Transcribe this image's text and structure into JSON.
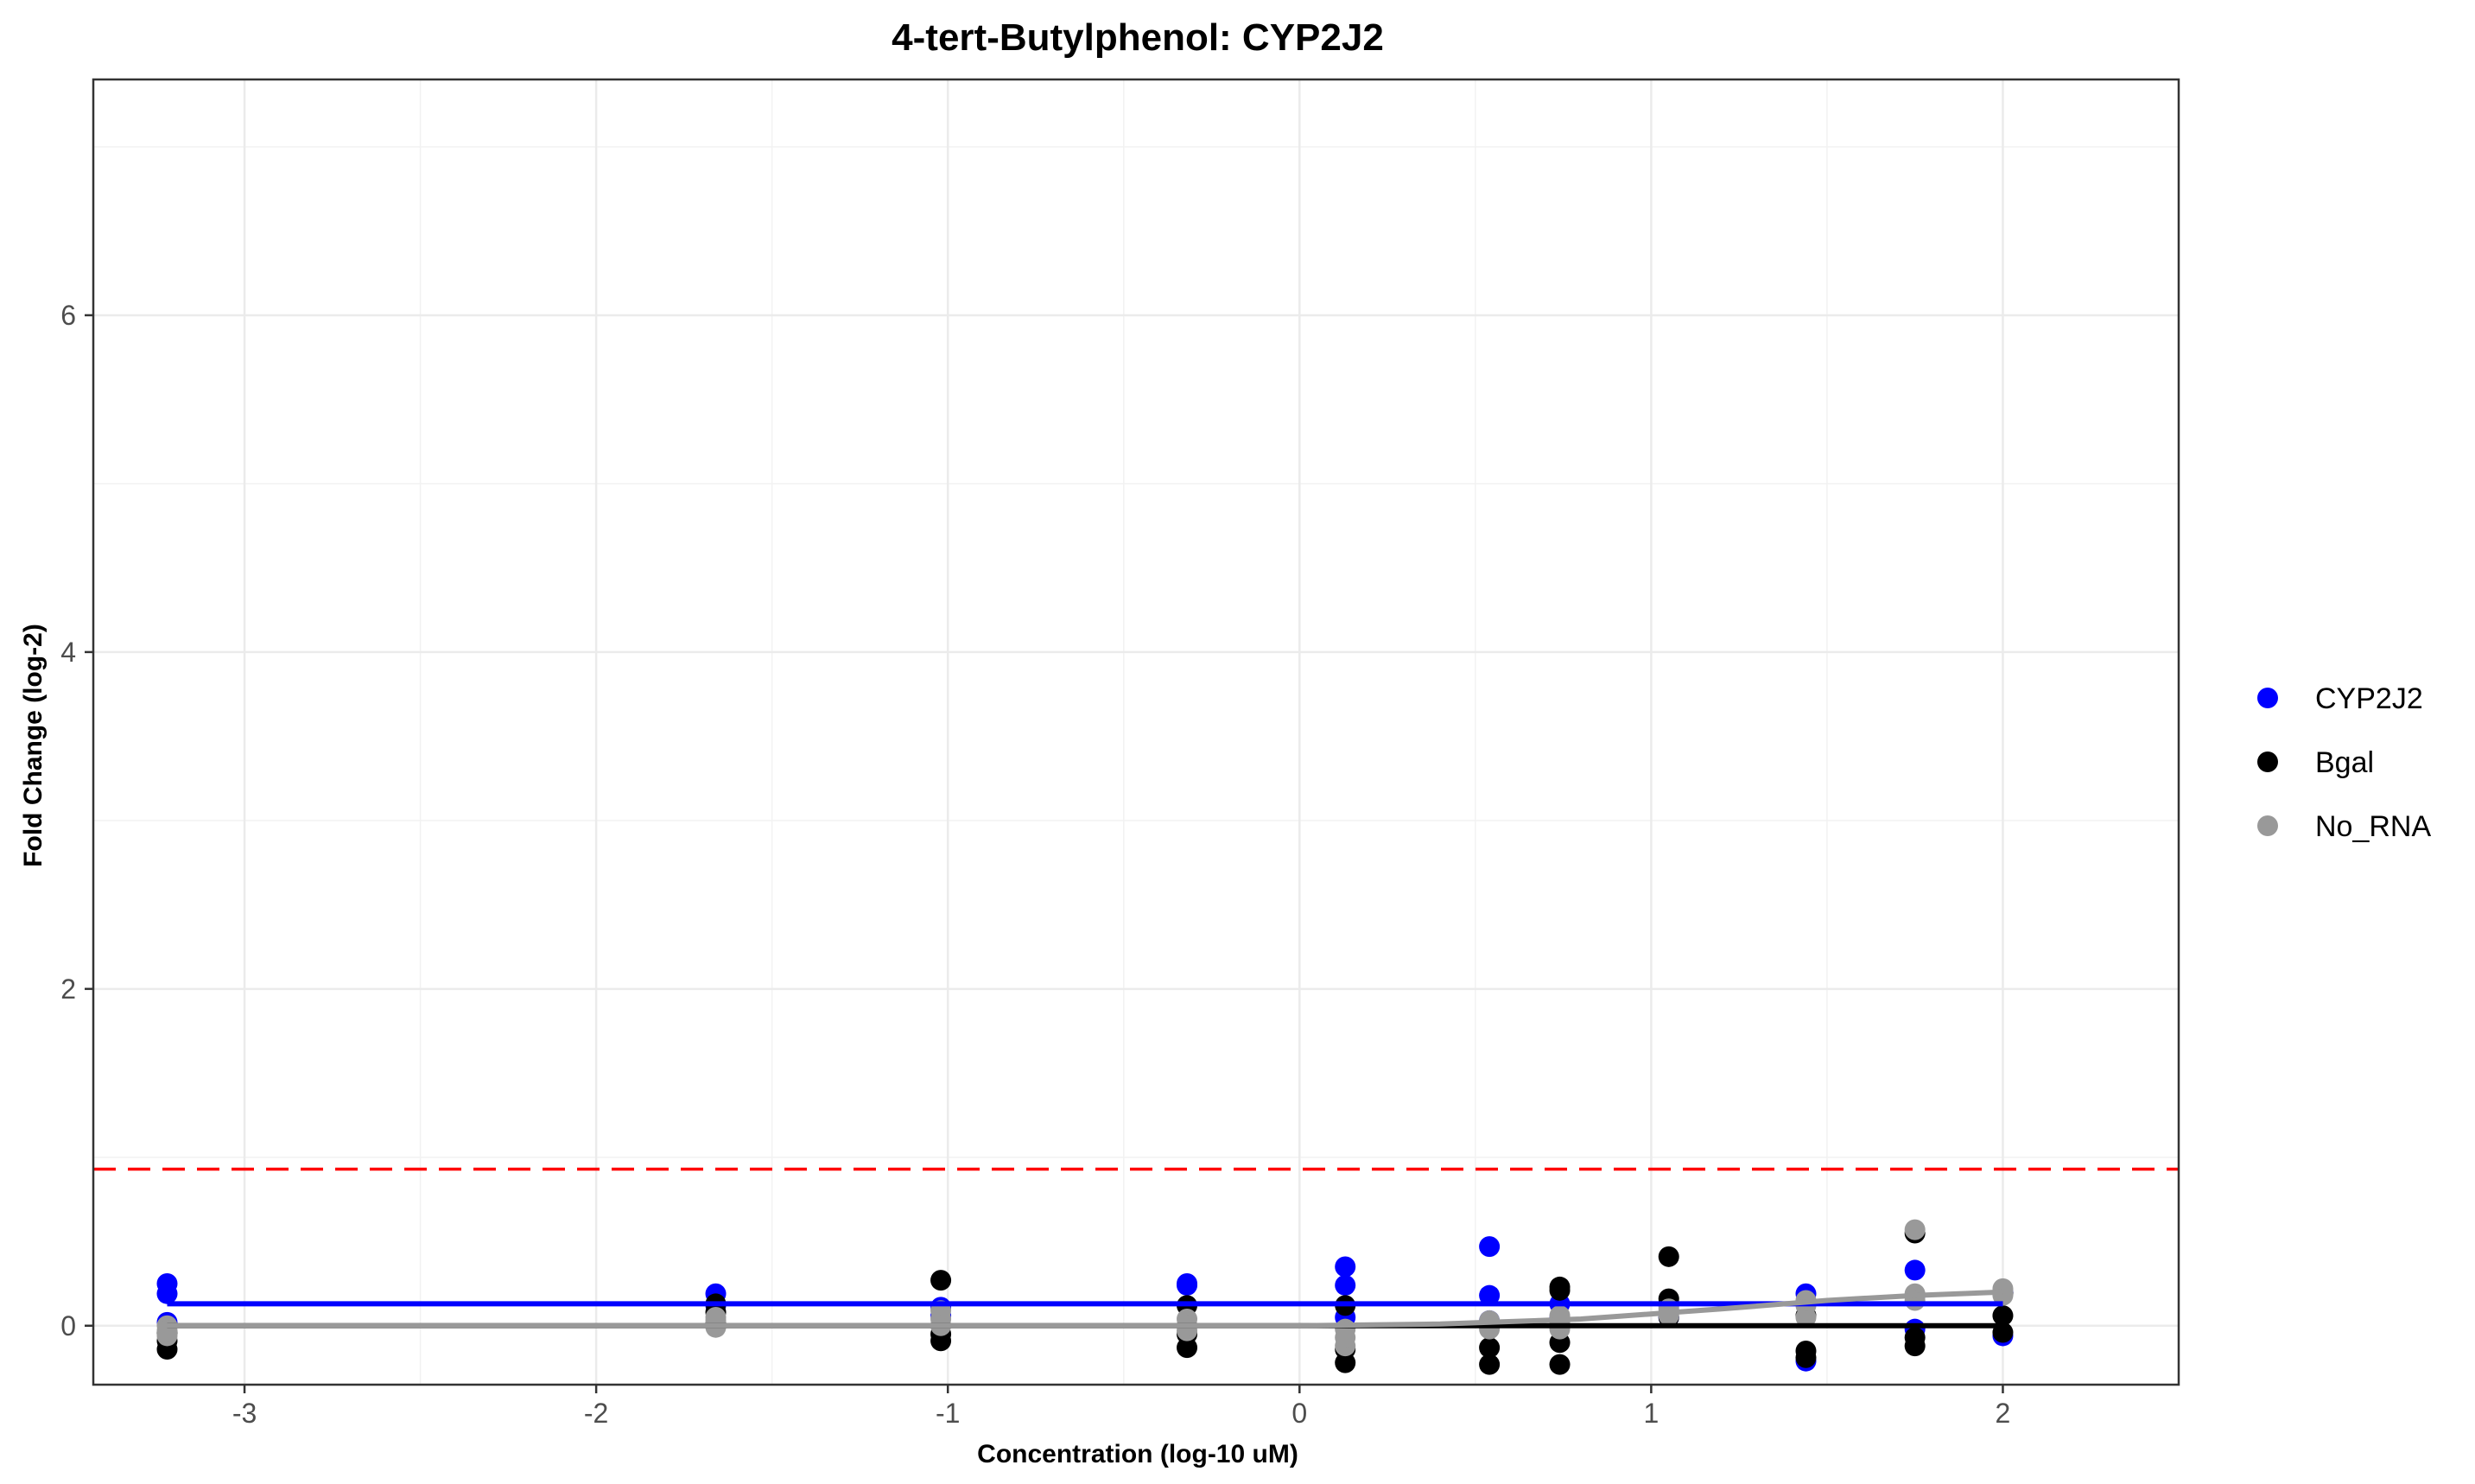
{
  "chart_data": {
    "type": "scatter",
    "title": "4-tert-Butylphenol: CYP2J2",
    "xlabel": "Concentration (log-10 uM)",
    "ylabel": "Fold Change (log-2)",
    "xlim": [
      -3.43,
      2.5
    ],
    "ylim": [
      -0.35,
      7.4
    ],
    "x_ticks": [
      -3,
      -2,
      -1,
      0,
      1,
      2
    ],
    "y_ticks": [
      0,
      2,
      4,
      6
    ],
    "grid": true,
    "legend_position": "right",
    "threshold": {
      "y": 0.93,
      "color": "#ff0000",
      "style": "dashed"
    },
    "series": [
      {
        "name": "CYP2J2",
        "color": "#0000ff",
        "points": [
          [
            -3.22,
            0.25
          ],
          [
            -3.22,
            0.19
          ],
          [
            -3.22,
            0.02
          ],
          [
            -1.66,
            0.19
          ],
          [
            -1.66,
            0.12
          ],
          [
            -1.02,
            0.11
          ],
          [
            -1.02,
            0.06
          ],
          [
            -0.32,
            0.25
          ],
          [
            -0.32,
            0.24
          ],
          [
            0.13,
            0.35
          ],
          [
            0.13,
            0.24
          ],
          [
            0.13,
            0.05
          ],
          [
            0.54,
            0.47
          ],
          [
            0.54,
            0.18
          ],
          [
            0.54,
            0.03
          ],
          [
            0.74,
            0.13
          ],
          [
            0.74,
            0.05
          ],
          [
            1.05,
            0.12
          ],
          [
            1.05,
            0.05
          ],
          [
            1.44,
            -0.21
          ],
          [
            1.44,
            0.19
          ],
          [
            1.44,
            0.13
          ],
          [
            1.75,
            0.33
          ],
          [
            1.75,
            -0.02
          ],
          [
            1.75,
            0.18
          ],
          [
            2.0,
            -0.06
          ],
          [
            2.0,
            0.2
          ]
        ],
        "fit": [
          [
            -3.22,
            0.13
          ],
          [
            2.0,
            0.13
          ]
        ]
      },
      {
        "name": "Bgal",
        "color": "#000000",
        "points": [
          [
            -3.22,
            -0.14
          ],
          [
            -3.22,
            -0.09
          ],
          [
            -3.22,
            -0.04
          ],
          [
            -1.66,
            0.13
          ],
          [
            -1.66,
            0.08
          ],
          [
            -1.66,
            0.01
          ],
          [
            -1.02,
            0.27
          ],
          [
            -1.02,
            -0.09
          ],
          [
            -1.02,
            -0.05
          ],
          [
            -0.32,
            0.12
          ],
          [
            -0.32,
            -0.05
          ],
          [
            -0.32,
            -0.13
          ],
          [
            0.13,
            -0.22
          ],
          [
            0.13,
            -0.14
          ],
          [
            0.13,
            0.12
          ],
          [
            0.54,
            -0.23
          ],
          [
            0.54,
            -0.13
          ],
          [
            0.54,
            0.01
          ],
          [
            0.74,
            -0.23
          ],
          [
            0.74,
            -0.1
          ],
          [
            0.74,
            0.23
          ],
          [
            0.74,
            0.21
          ],
          [
            1.05,
            0.41
          ],
          [
            1.05,
            0.16
          ],
          [
            1.05,
            0.05
          ],
          [
            1.44,
            -0.15
          ],
          [
            1.44,
            -0.19
          ],
          [
            1.44,
            0.06
          ],
          [
            1.75,
            0.55
          ],
          [
            1.75,
            -0.12
          ],
          [
            1.75,
            -0.07
          ],
          [
            2.0,
            0.06
          ],
          [
            2.0,
            -0.04
          ],
          [
            2.0,
            0.19
          ]
        ],
        "fit": [
          [
            -3.22,
            0.0
          ],
          [
            2.0,
            0.0
          ]
        ]
      },
      {
        "name": "No_RNA",
        "color": "#999999",
        "points": [
          [
            -3.22,
            -0.06
          ],
          [
            -3.22,
            0.0
          ],
          [
            -3.22,
            -0.03
          ],
          [
            -1.66,
            0.03
          ],
          [
            -1.66,
            -0.01
          ],
          [
            -1.66,
            0.05
          ],
          [
            -1.02,
            0.09
          ],
          [
            -1.02,
            0.04
          ],
          [
            -1.02,
            0.0
          ],
          [
            -0.32,
            0.04
          ],
          [
            -0.32,
            -0.03
          ],
          [
            -0.32,
            0.0
          ],
          [
            0.13,
            -0.02
          ],
          [
            0.13,
            -0.12
          ],
          [
            0.13,
            -0.07
          ],
          [
            0.54,
            0.03
          ],
          [
            0.54,
            -0.02
          ],
          [
            0.54,
            0.0
          ],
          [
            0.74,
            0.06
          ],
          [
            0.74,
            -0.02
          ],
          [
            0.74,
            0.02
          ],
          [
            1.05,
            0.08
          ],
          [
            1.05,
            0.1
          ],
          [
            1.05,
            0.06
          ],
          [
            1.44,
            0.12
          ],
          [
            1.44,
            0.05
          ],
          [
            1.44,
            0.15
          ],
          [
            1.75,
            0.57
          ],
          [
            1.75,
            0.19
          ],
          [
            1.75,
            0.15
          ],
          [
            2.0,
            0.22
          ],
          [
            2.0,
            0.18
          ],
          [
            2.0,
            0.21
          ]
        ],
        "fit": [
          [
            -3.22,
            0.0
          ],
          [
            0.0,
            0.0
          ],
          [
            0.4,
            0.01
          ],
          [
            0.8,
            0.04
          ],
          [
            1.2,
            0.1
          ],
          [
            1.5,
            0.15
          ],
          [
            1.75,
            0.18
          ],
          [
            2.0,
            0.2
          ]
        ]
      }
    ]
  }
}
